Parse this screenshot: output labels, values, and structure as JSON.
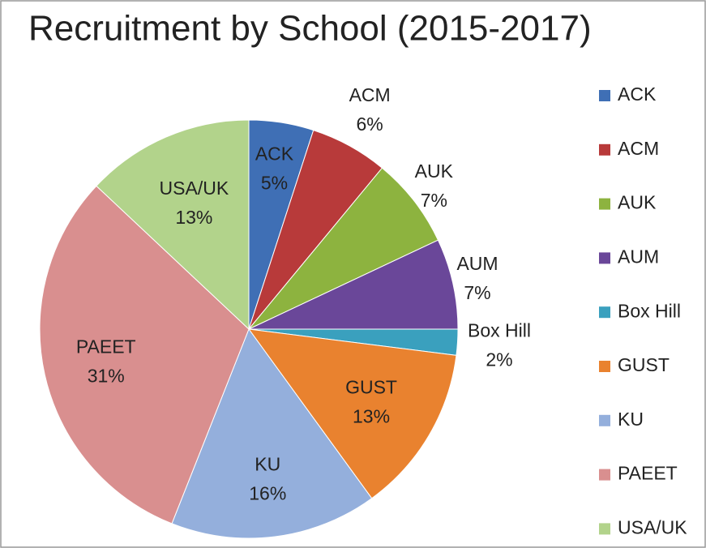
{
  "chart_data": {
    "type": "pie",
    "title": "Recruitment by School (2015-2017)",
    "categories": [
      "ACK",
      "ACM",
      "AUK",
      "AUM",
      "Box Hill",
      "GUST",
      "KU",
      "PAEET",
      "USA/UK"
    ],
    "values": [
      5,
      6,
      7,
      7,
      2,
      13,
      16,
      31,
      13
    ],
    "value_labels": [
      "5%",
      "6%",
      "7%",
      "7%",
      "2%",
      "13%",
      "16%",
      "31%",
      "13%"
    ],
    "colors": [
      "#3f6fb5",
      "#b83a3a",
      "#8db33f",
      "#6a4799",
      "#3aa0be",
      "#e9822f",
      "#94afdc",
      "#d98f8f",
      "#b2d38b"
    ],
    "legend": "right"
  }
}
